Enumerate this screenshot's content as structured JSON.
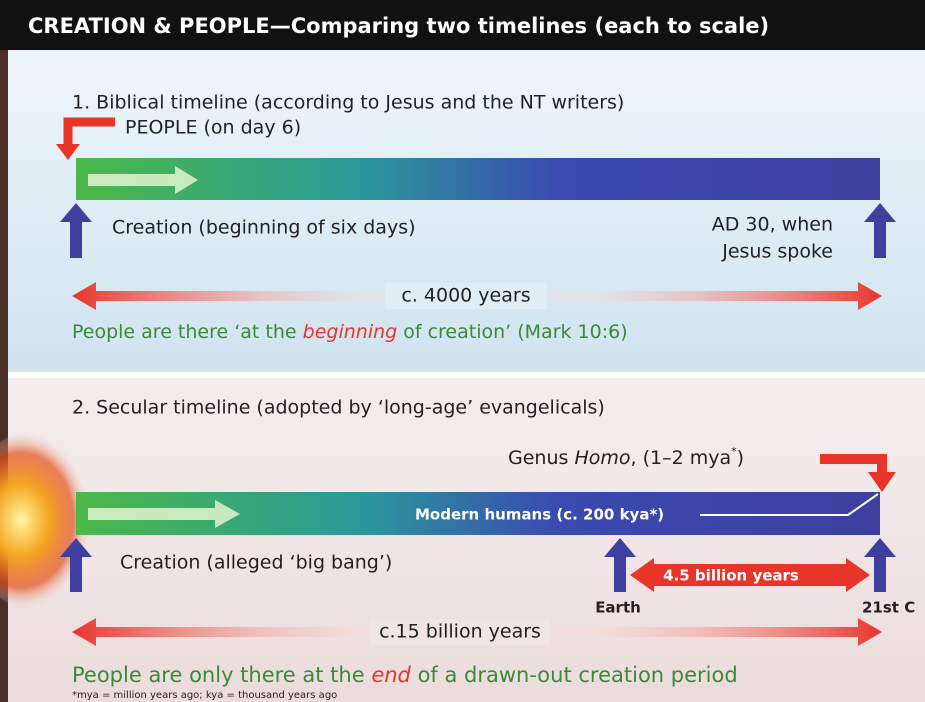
{
  "header": {
    "title": "CREATION & PEOPLE—Comparing two timelines (each to scale)"
  },
  "panel1": {
    "heading": "1. Biblical timeline (according to Jesus and the NT writers)",
    "people": "PEOPLE (on day 6)",
    "creation": "Creation (beginning of six days)",
    "end_label": [
      "AD 30, when",
      "Jesus spoke"
    ],
    "span": "c. 4000 years",
    "caption": [
      "People are there ‘at the ",
      "beginning",
      " of creation’ (Mark 10:6)"
    ]
  },
  "panel2": {
    "heading": "2. Secular timeline (adopted by ‘long-age’ evangelicals)",
    "genus": [
      "Genus ",
      "Homo",
      ", (1–2 mya",
      "*",
      ")"
    ],
    "modern": "Modern humans (c. 200 kya*)",
    "creation": "Creation (alleged ‘big bang’)",
    "gap": "4.5 billion years",
    "earth": "Earth",
    "end": "21st C",
    "span": "c.15 billion years",
    "caption": [
      "People are only there at the ",
      "end",
      " of a drawn-out creation period"
    ],
    "footnote": "*mya = million years ago; kya = thousand years ago"
  }
}
